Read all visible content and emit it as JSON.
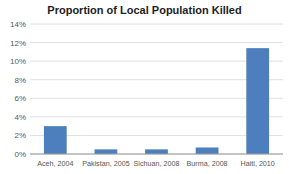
{
  "chart_data": {
    "type": "bar",
    "title": "Proportion of Local Population Killed",
    "categories": [
      "Aceh, 2004",
      "Pakistan, 2005",
      "Sichuan, 2008",
      "Burma, 2008",
      "Haiti, 2010"
    ],
    "values": [
      0.03,
      0.005,
      0.005,
      0.007,
      0.114
    ],
    "color": "#4d7fbe",
    "ylim": [
      0,
      0.14
    ],
    "yticks": [
      {
        "value": 0.0,
        "label": "0%"
      },
      {
        "value": 0.02,
        "label": "2%"
      },
      {
        "value": 0.04,
        "label": "4%"
      },
      {
        "value": 0.06,
        "label": "6%"
      },
      {
        "value": 0.08,
        "label": "8%"
      },
      {
        "value": 0.1,
        "label": "10%"
      },
      {
        "value": 0.12,
        "label": "12%"
      },
      {
        "value": 0.14,
        "label": "14%"
      }
    ],
    "grid": true
  }
}
